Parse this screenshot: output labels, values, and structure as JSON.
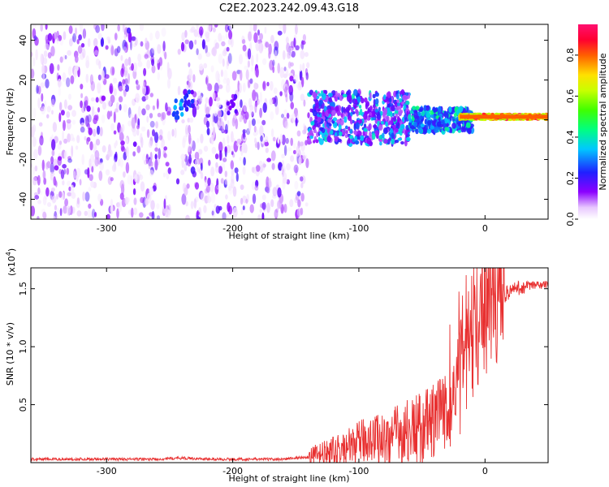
{
  "title": "C2E2.2023.242.09.43.G18",
  "chart_data": [
    {
      "type": "heatmap",
      "xlabel": "Height of straight line (km)",
      "ylabel": "Frequency (Hz)",
      "xlim": [
        -360,
        50
      ],
      "ylim": [
        -50,
        48
      ],
      "x_ticks": [
        -300,
        -200,
        -100,
        0
      ],
      "x_tick_labels": [
        "-300",
        "-200",
        "-100",
        "0"
      ],
      "y_ticks": [
        -40,
        -20,
        0,
        20,
        40
      ],
      "y_tick_labels": [
        "-40",
        "-20",
        "0",
        "20",
        "40"
      ],
      "grid": false,
      "colorbar": {
        "label": "Normalized spectral amplitude",
        "range": [
          0.0,
          0.95
        ],
        "ticks": [
          0.0,
          0.2,
          0.4,
          0.6,
          0.8
        ],
        "tick_labels": [
          "0.0",
          "0.2",
          "0.4",
          "0.6",
          "0.8"
        ],
        "colormap": "rainbow"
      },
      "regions": [
        {
          "x": [
            -360,
            -140
          ],
          "freq": [
            -50,
            48
          ],
          "amplitude": [
            0.02,
            0.2
          ],
          "description": "broadband noise"
        },
        {
          "x": [
            -140,
            -60
          ],
          "freq": [
            -12,
            14
          ],
          "amplitude": [
            0.1,
            0.4
          ]
        },
        {
          "x": [
            -60,
            -10
          ],
          "freq": [
            -6,
            6
          ],
          "amplitude": [
            0.2,
            0.45
          ]
        },
        {
          "x": [
            -20,
            50
          ],
          "freq": [
            0,
            3
          ],
          "amplitude": [
            0.6,
            0.95
          ]
        }
      ],
      "blob_centers": [
        {
          "x": -243,
          "freq": 5,
          "amplitude": 0.3
        },
        {
          "x": -235,
          "freq": 10,
          "amplitude": 0.22
        },
        {
          "x": -200,
          "freq": 7,
          "amplitude": 0.15
        }
      ]
    },
    {
      "type": "line",
      "xlabel": "Height of straight line (km)",
      "ylabel": "SNR (10 * v/v)",
      "y_multiplier_label": "(x10",
      "y_multiplier_exp": "4",
      "y_multiplier_close": ")",
      "xlim": [
        -360,
        50
      ],
      "ylim": [
        0,
        1.68
      ],
      "x_ticks": [
        -300,
        -200,
        -100,
        0
      ],
      "x_tick_labels": [
        "-300",
        "-200",
        "-100",
        "0"
      ],
      "y_ticks": [
        0.5,
        1.0,
        1.5
      ],
      "y_tick_labels": [
        "0.5",
        "1.0",
        "1.5"
      ],
      "grid": false,
      "series_color": "#e83030",
      "series": [
        {
          "x": [
            -360,
            -340,
            -320,
            -300,
            -280,
            -260,
            -240,
            -220,
            -200,
            -180,
            -160,
            -150,
            -140,
            -130,
            -120,
            -110,
            -100,
            -90,
            -80,
            -70,
            -60,
            -50,
            -40,
            -30,
            -25,
            -20,
            -15,
            -10,
            -5,
            0,
            5,
            10,
            15,
            20,
            25,
            30,
            35,
            40,
            45,
            50
          ],
          "values": [
            0.03,
            0.03,
            0.03,
            0.03,
            0.03,
            0.03,
            0.04,
            0.03,
            0.03,
            0.03,
            0.03,
            0.04,
            0.05,
            0.07,
            0.09,
            0.12,
            0.17,
            0.22,
            0.2,
            0.24,
            0.27,
            0.3,
            0.35,
            0.45,
            0.55,
            0.75,
            0.95,
            1.1,
            1.22,
            1.3,
            1.35,
            1.4,
            1.45,
            1.48,
            1.5,
            1.51,
            1.52,
            1.53,
            1.53,
            1.54
          ]
        }
      ]
    }
  ]
}
